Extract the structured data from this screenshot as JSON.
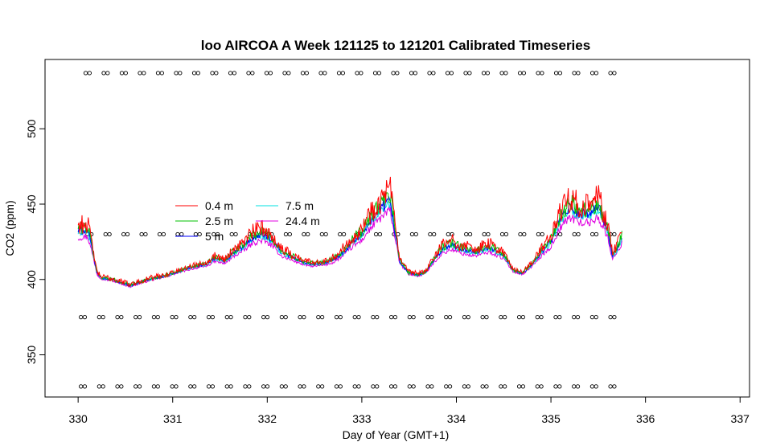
{
  "chart_data": {
    "type": "line",
    "title": "loo AIRCOA A  Week 121125 to 121201  Calibrated Timeseries",
    "xlabel": "Day of Year (GMT+1)",
    "ylabel": "CO2 (ppm)",
    "xlim": [
      329.65,
      337.1
    ],
    "ylim": [
      322,
      546
    ],
    "x_ticks": [
      330,
      331,
      332,
      333,
      334,
      335,
      336,
      337
    ],
    "y_ticks": [
      350,
      400,
      450,
      500
    ],
    "grid": false,
    "legend_position": "upper-left inside plot",
    "legend": [
      "0.4 m",
      "2.5 m",
      "5 m",
      "7.5 m",
      "24.4 m"
    ],
    "series": [
      {
        "name": "0.4 m",
        "color": "#ff0000",
        "offset": 4,
        "noise": 6
      },
      {
        "name": "2.5 m",
        "color": "#00c000",
        "offset": 2,
        "noise": 4
      },
      {
        "name": "5 m",
        "color": "#0000ff",
        "offset": 0,
        "noise": 2.5
      },
      {
        "name": "7.5 m",
        "color": "#00e0e0",
        "offset": -1,
        "noise": 2
      },
      {
        "name": "24.4 m",
        "color": "#e000e0",
        "offset": -4,
        "noise": 2
      }
    ],
    "base_profile": {
      "x": [
        330.0,
        330.1,
        330.15,
        330.2,
        330.25,
        330.35,
        330.45,
        330.55,
        330.65,
        330.75,
        330.9,
        331.05,
        331.2,
        331.35,
        331.45,
        331.55,
        331.65,
        331.75,
        331.85,
        331.95,
        332.05,
        332.15,
        332.25,
        332.4,
        332.5,
        332.6,
        332.7,
        332.8,
        332.9,
        333.0,
        333.1,
        333.2,
        333.3,
        333.4,
        333.5,
        333.6,
        333.68,
        333.75,
        333.85,
        333.95,
        334.05,
        334.2,
        334.35,
        334.5,
        334.6,
        334.7,
        334.8,
        334.9,
        335.0,
        335.1,
        335.2,
        335.3,
        335.4,
        335.5,
        335.55,
        335.6,
        335.65,
        335.7,
        335.75
      ],
      "y": [
        432,
        433,
        420,
        404,
        401,
        400,
        398,
        396,
        398,
        400,
        402,
        405,
        408,
        410,
        414,
        412,
        418,
        422,
        428,
        430,
        426,
        418,
        415,
        411,
        410,
        411,
        413,
        418,
        425,
        430,
        440,
        447,
        453,
        412,
        404,
        403,
        405,
        412,
        420,
        423,
        420,
        418,
        421,
        416,
        406,
        404,
        410,
        418,
        425,
        440,
        448,
        444,
        443,
        448,
        440,
        432,
        416,
        420,
        428
      ]
    },
    "marker_rows": [
      {
        "y": 537,
        "x_start": 330.1,
        "x_end": 335.65,
        "count": 30,
        "marker": "double-circle"
      },
      {
        "y": 430,
        "x_start": 330.12,
        "x_end": 335.65,
        "count": 30,
        "marker": "double-circle"
      },
      {
        "y": 375,
        "x_start": 330.05,
        "x_end": 335.65,
        "count": 30,
        "marker": "double-circle"
      },
      {
        "y": 329,
        "x_start": 330.05,
        "x_end": 335.65,
        "count": 30,
        "marker": "double-circle"
      }
    ]
  }
}
